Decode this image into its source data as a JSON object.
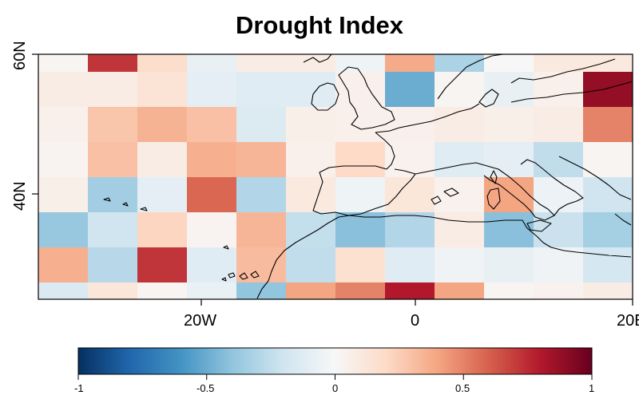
{
  "title": "Drought Index",
  "axes": {
    "y_ticks": [
      "60N",
      "40N"
    ],
    "x_ticks": [
      "20W",
      "0",
      "20E"
    ]
  },
  "colorbar": {
    "ticks": [
      "-1",
      "-0.5",
      "0",
      "0.5",
      "1"
    ],
    "colors": [
      "#053061",
      "#2166ac",
      "#4393c3",
      "#92c5de",
      "#d1e5f0",
      "#f7f7f7",
      "#fddbc7",
      "#f4a582",
      "#d6604d",
      "#b2182b",
      "#67001f"
    ],
    "range": [
      -1,
      1
    ]
  },
  "grid": {
    "rows": 8,
    "cols": 12,
    "lat_ticks": [
      60,
      40
    ],
    "lon_ticks": [
      -20,
      0,
      20
    ],
    "values": [
      [
        0.02,
        0.72,
        0.18,
        -0.08,
        0.08,
        0.08,
        -0.05,
        0.38,
        -0.32,
        0.0,
        0.1,
        0.1
      ],
      [
        0.08,
        0.08,
        0.14,
        -0.1,
        -0.12,
        -0.12,
        0.05,
        -0.5,
        0.02,
        -0.08,
        0.05,
        0.88
      ],
      [
        0.05,
        0.28,
        0.35,
        0.3,
        -0.14,
        0.06,
        0.05,
        0.05,
        0.08,
        0.06,
        0.08,
        0.5
      ],
      [
        0.03,
        0.3,
        0.08,
        0.36,
        0.34,
        0.05,
        0.2,
        0.04,
        -0.12,
        -0.1,
        -0.25,
        0.02
      ],
      [
        0.06,
        -0.35,
        -0.1,
        0.58,
        -0.3,
        0.1,
        -0.05,
        0.12,
        0.04,
        0.4,
        -0.06,
        -0.2
      ],
      [
        -0.38,
        -0.2,
        0.22,
        0.03,
        0.34,
        -0.24,
        -0.42,
        -0.3,
        0.08,
        -0.42,
        -0.22,
        -0.34
      ],
      [
        0.36,
        -0.28,
        0.72,
        -0.12,
        0.32,
        -0.25,
        0.16,
        -0.12,
        -0.04,
        -0.08,
        -0.04,
        -0.18
      ],
      [
        -0.15,
        0.12,
        0.02,
        -0.07,
        -0.4,
        0.4,
        0.5,
        0.8,
        0.4,
        0.02,
        0.04,
        0.08
      ]
    ]
  }
}
